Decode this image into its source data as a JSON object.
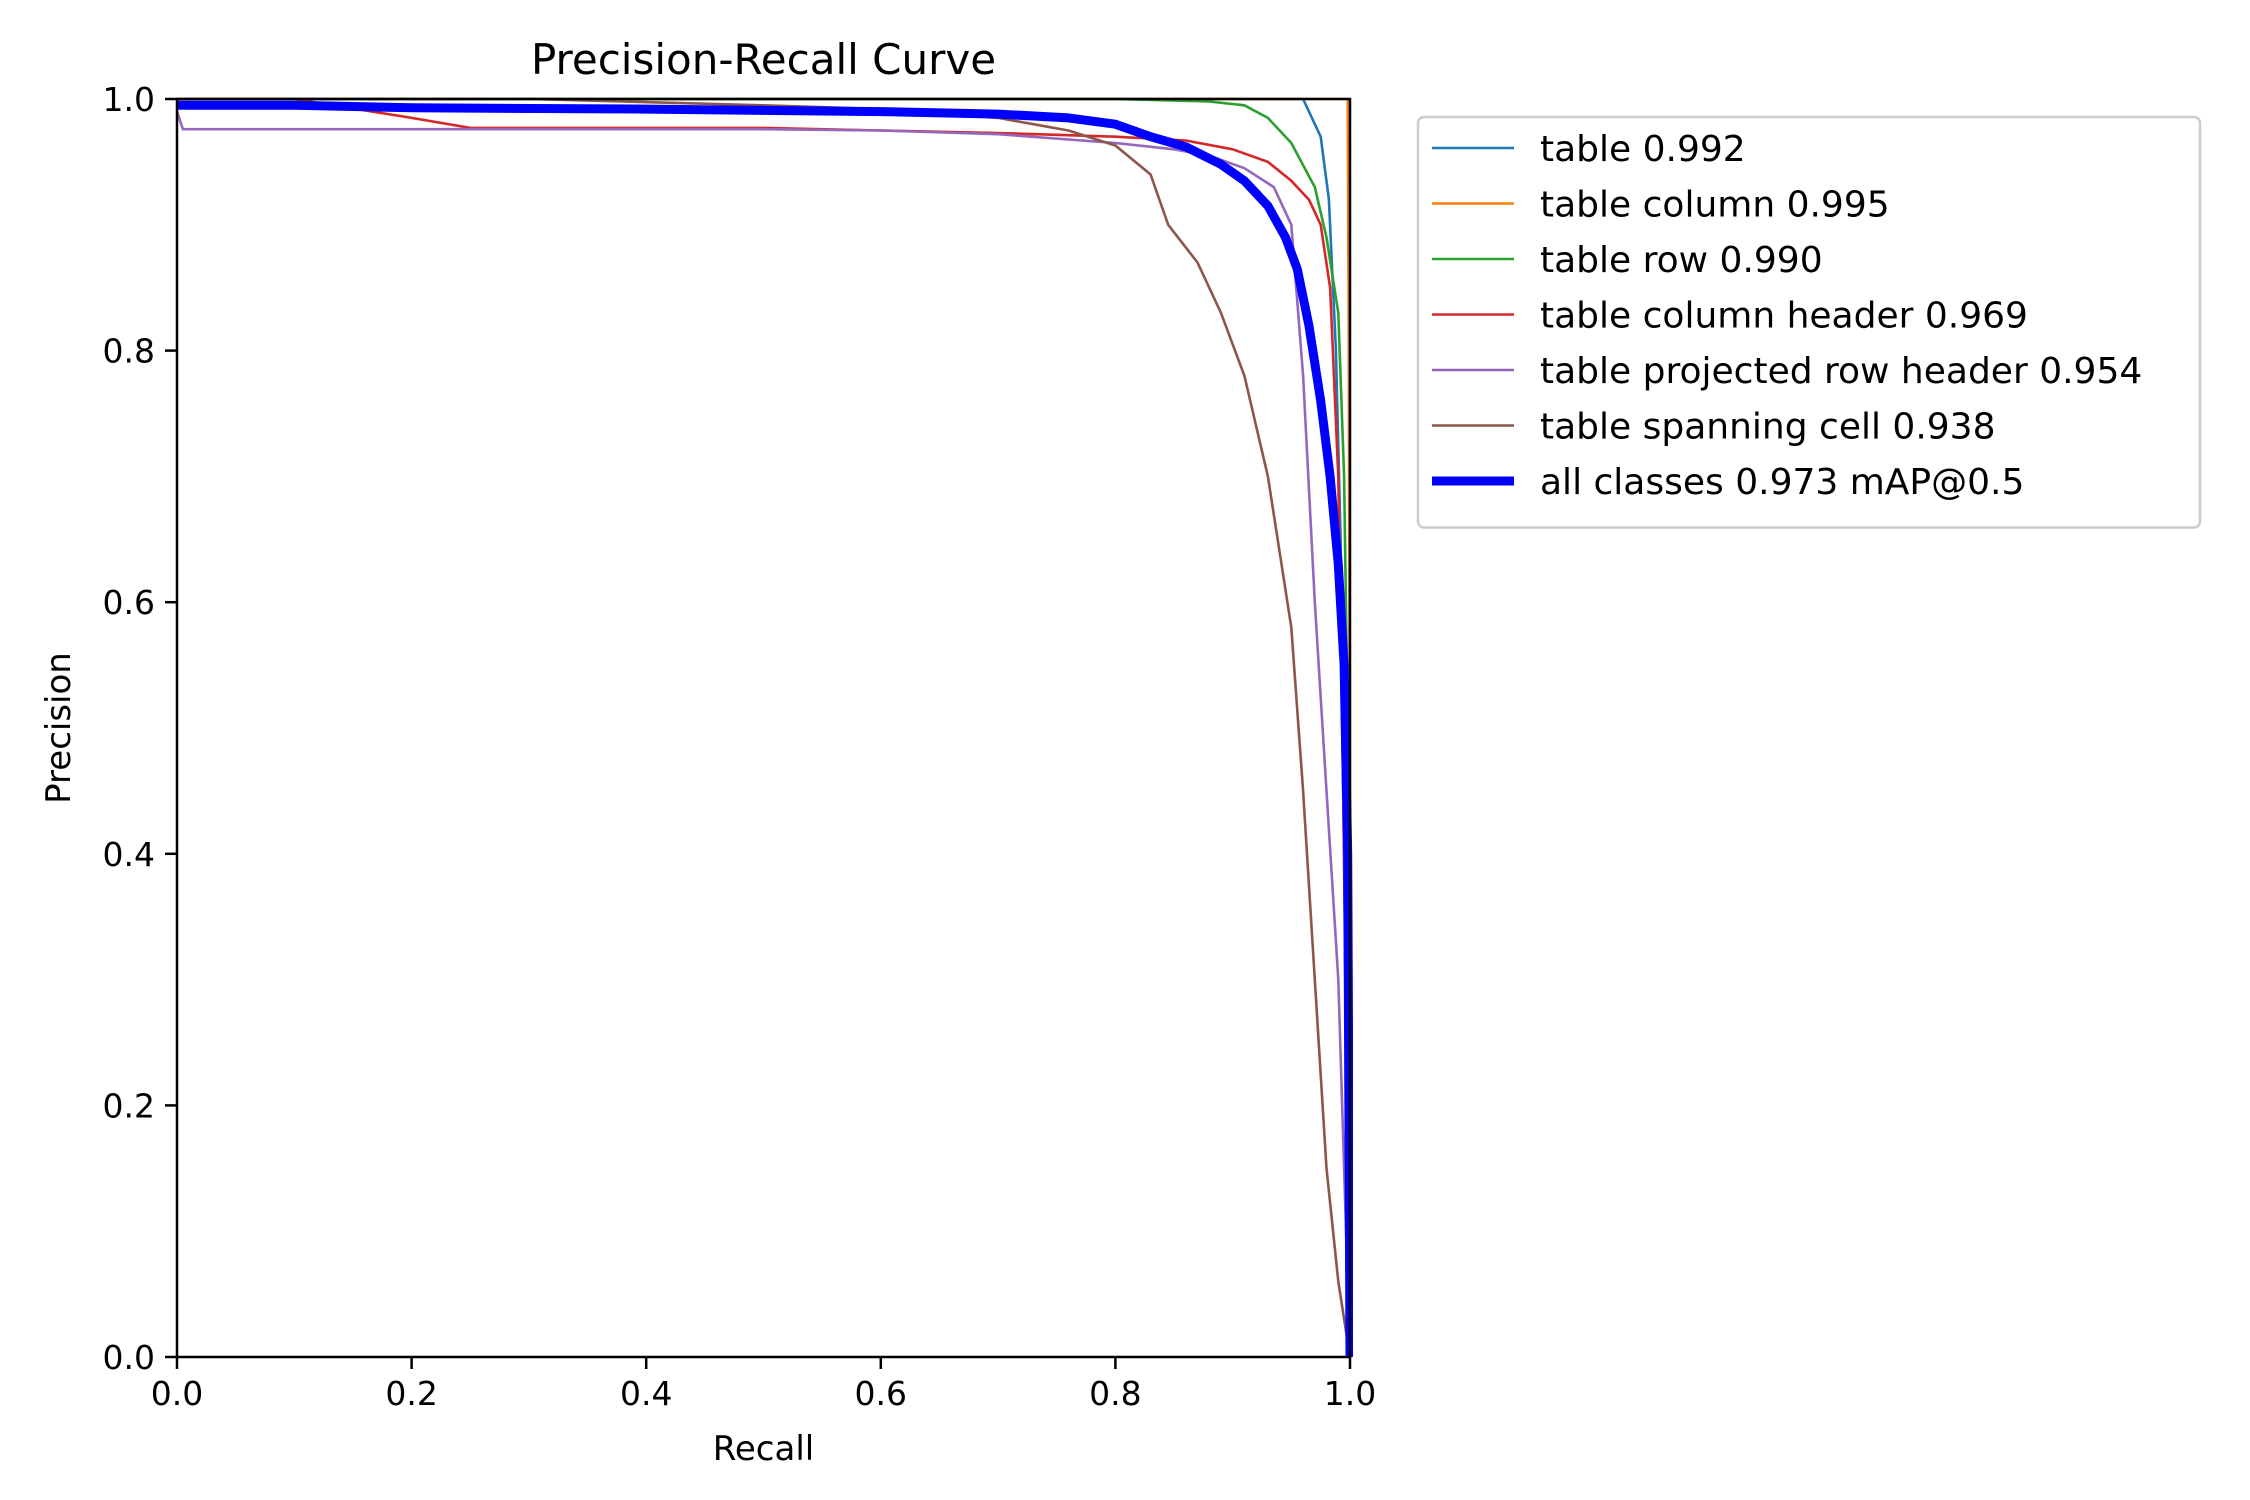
{
  "chart_data": {
    "type": "line",
    "title": "Precision-Recall Curve",
    "xlabel": "Recall",
    "ylabel": "Precision",
    "xlim": [
      0,
      1
    ],
    "ylim": [
      0,
      1
    ],
    "grid": false,
    "legend_position": "outside-right-top",
    "x_ticks": [
      "0.0",
      "0.2",
      "0.4",
      "0.6",
      "0.8",
      "1.0"
    ],
    "y_ticks": [
      "0.0",
      "0.2",
      "0.4",
      "0.6",
      "0.8",
      "1.0"
    ],
    "series": [
      {
        "name": "table 0.992",
        "color": "#1f77b4",
        "width": "thin",
        "points": [
          [
            0,
            1.0
          ],
          [
            0.5,
            1.0
          ],
          [
            0.9,
            1.0
          ],
          [
            0.96,
            1.0
          ],
          [
            0.975,
            0.97
          ],
          [
            0.982,
            0.92
          ],
          [
            0.988,
            0.8
          ],
          [
            0.992,
            0.65
          ],
          [
            0.996,
            0.3
          ],
          [
            1.0,
            0.0
          ]
        ]
      },
      {
        "name": "table column 0.995",
        "color": "#ff7f0e",
        "width": "thin",
        "points": [
          [
            0,
            1.0
          ],
          [
            0.5,
            1.0
          ],
          [
            0.95,
            1.0
          ],
          [
            0.998,
            1.0
          ],
          [
            0.999,
            0.8
          ],
          [
            1.0,
            0.4
          ],
          [
            1.0,
            0.0
          ]
        ]
      },
      {
        "name": "table row 0.990",
        "color": "#2ca02c",
        "width": "thin",
        "points": [
          [
            0,
            1.0
          ],
          [
            0.5,
            1.0
          ],
          [
            0.8,
            1.0
          ],
          [
            0.88,
            0.998
          ],
          [
            0.91,
            0.995
          ],
          [
            0.93,
            0.985
          ],
          [
            0.95,
            0.965
          ],
          [
            0.97,
            0.93
          ],
          [
            0.98,
            0.89
          ],
          [
            0.99,
            0.83
          ],
          [
            0.995,
            0.7
          ],
          [
            0.998,
            0.5
          ],
          [
            1.0,
            0.0
          ]
        ]
      },
      {
        "name": "table column header 0.969",
        "color": "#d62728",
        "width": "thin",
        "points": [
          [
            0,
            1.0
          ],
          [
            0.1,
            1.0
          ],
          [
            0.2,
            0.985
          ],
          [
            0.25,
            0.977
          ],
          [
            0.3,
            0.977
          ],
          [
            0.5,
            0.977
          ],
          [
            0.6,
            0.975
          ],
          [
            0.7,
            0.973
          ],
          [
            0.8,
            0.97
          ],
          [
            0.86,
            0.967
          ],
          [
            0.9,
            0.96
          ],
          [
            0.93,
            0.95
          ],
          [
            0.95,
            0.935
          ],
          [
            0.965,
            0.92
          ],
          [
            0.975,
            0.9
          ],
          [
            0.983,
            0.85
          ],
          [
            0.99,
            0.7
          ],
          [
            0.995,
            0.4
          ],
          [
            1.0,
            0.0
          ]
        ]
      },
      {
        "name": "table projected row header 0.954",
        "color": "#9467bd",
        "width": "thin",
        "points": [
          [
            0,
            0.99
          ],
          [
            0.005,
            0.976
          ],
          [
            0.1,
            0.976
          ],
          [
            0.3,
            0.976
          ],
          [
            0.5,
            0.976
          ],
          [
            0.6,
            0.975
          ],
          [
            0.7,
            0.972
          ],
          [
            0.8,
            0.965
          ],
          [
            0.85,
            0.96
          ],
          [
            0.88,
            0.955
          ],
          [
            0.91,
            0.945
          ],
          [
            0.935,
            0.93
          ],
          [
            0.95,
            0.9
          ],
          [
            0.96,
            0.78
          ],
          [
            0.97,
            0.6
          ],
          [
            0.98,
            0.45
          ],
          [
            0.99,
            0.3
          ],
          [
            0.995,
            0.15
          ],
          [
            1.0,
            0.0
          ]
        ]
      },
      {
        "name": "table spanning cell 0.938",
        "color": "#8c564b",
        "width": "thin",
        "points": [
          [
            0,
            1.0
          ],
          [
            0.3,
            1.0
          ],
          [
            0.5,
            0.995
          ],
          [
            0.6,
            0.992
          ],
          [
            0.7,
            0.985
          ],
          [
            0.76,
            0.975
          ],
          [
            0.8,
            0.963
          ],
          [
            0.83,
            0.94
          ],
          [
            0.845,
            0.9
          ],
          [
            0.87,
            0.87
          ],
          [
            0.89,
            0.83
          ],
          [
            0.91,
            0.78
          ],
          [
            0.93,
            0.7
          ],
          [
            0.95,
            0.58
          ],
          [
            0.96,
            0.45
          ],
          [
            0.97,
            0.3
          ],
          [
            0.98,
            0.15
          ],
          [
            0.99,
            0.06
          ],
          [
            1.0,
            0.0
          ]
        ]
      },
      {
        "name": "all classes 0.973 mAP@0.5",
        "color": "#0000ff",
        "width": "thick",
        "points": [
          [
            0,
            0.995
          ],
          [
            0.1,
            0.995
          ],
          [
            0.2,
            0.993
          ],
          [
            0.4,
            0.992
          ],
          [
            0.6,
            0.99
          ],
          [
            0.7,
            0.988
          ],
          [
            0.76,
            0.985
          ],
          [
            0.8,
            0.98
          ],
          [
            0.83,
            0.97
          ],
          [
            0.86,
            0.962
          ],
          [
            0.89,
            0.948
          ],
          [
            0.91,
            0.935
          ],
          [
            0.93,
            0.915
          ],
          [
            0.945,
            0.89
          ],
          [
            0.955,
            0.865
          ],
          [
            0.965,
            0.82
          ],
          [
            0.975,
            0.76
          ],
          [
            0.983,
            0.7
          ],
          [
            0.99,
            0.63
          ],
          [
            0.995,
            0.55
          ],
          [
            0.998,
            0.4
          ],
          [
            1.0,
            0.0
          ]
        ]
      }
    ]
  }
}
